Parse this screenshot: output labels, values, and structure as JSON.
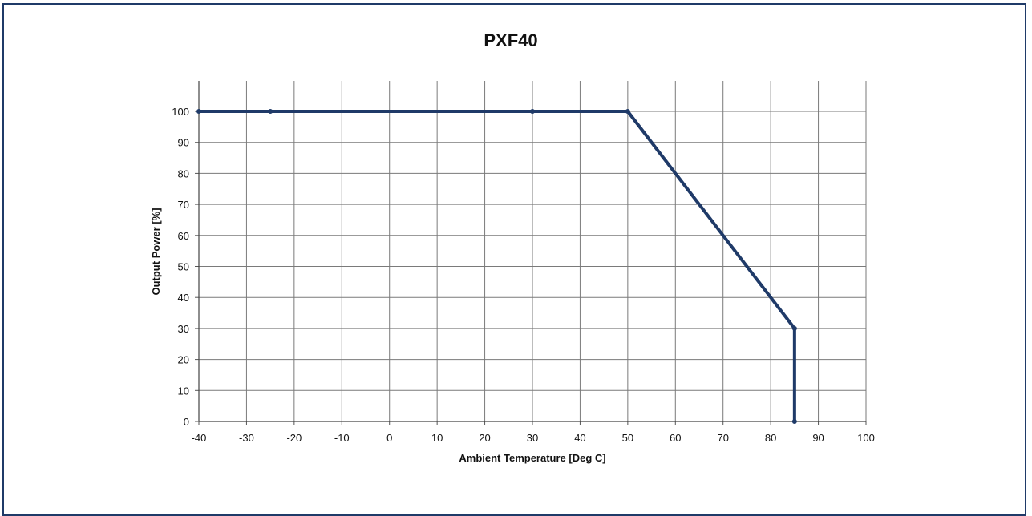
{
  "chart_data": {
    "type": "line",
    "title": "PXF40",
    "xlabel": "Ambient Temperature [Deg C]",
    "ylabel": "Output Power [%]",
    "xlim": [
      -40,
      100
    ],
    "ylim": [
      0,
      100
    ],
    "x_ticks": [
      -40,
      -30,
      -20,
      -10,
      0,
      10,
      20,
      30,
      40,
      50,
      60,
      70,
      80,
      90,
      100
    ],
    "y_ticks": [
      0,
      10,
      20,
      30,
      40,
      50,
      60,
      70,
      80,
      90,
      100
    ],
    "x_tick_labels": [
      "-40",
      "-30",
      "-20",
      "-10",
      "0",
      "10",
      "20",
      "30",
      "40",
      "50",
      "60",
      "70",
      "80",
      "90",
      "100"
    ],
    "y_tick_labels": [
      "0",
      "10",
      "20",
      "30",
      "40",
      "50",
      "60",
      "70",
      "80",
      "90",
      "100"
    ],
    "grid": true,
    "series": [
      {
        "color": "#1f3a68",
        "points": [
          {
            "x": -40,
            "y": 100
          },
          {
            "x": -25,
            "y": 100
          },
          {
            "x": 30,
            "y": 100
          },
          {
            "x": 50,
            "y": 100
          },
          {
            "x": 85,
            "y": 30
          },
          {
            "x": 85,
            "y": 0
          }
        ]
      }
    ]
  }
}
